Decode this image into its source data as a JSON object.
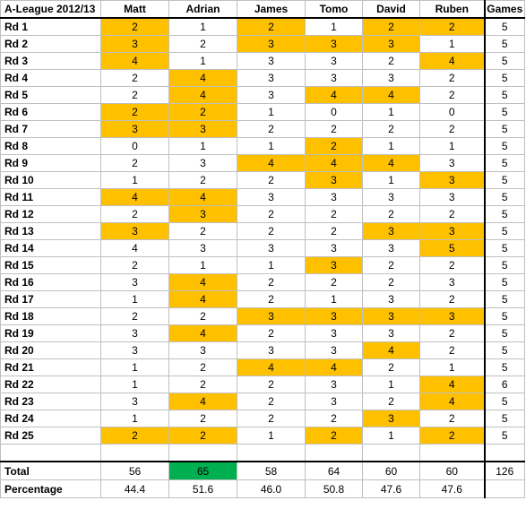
{
  "table": {
    "title": "A-League 2012/13",
    "players": [
      "Matt",
      "Adrian",
      "James",
      "Tomo",
      "David",
      "Ruben"
    ],
    "games_header": "Games",
    "highlight_color": "#ffc000",
    "best_total_color": "#00b050",
    "rounds": [
      {
        "label": "Rd 1",
        "scores": [
          "2",
          "1",
          "2",
          "1",
          "2",
          "2"
        ],
        "hl": [
          1,
          0,
          1,
          0,
          1,
          1
        ],
        "games": "5"
      },
      {
        "label": "Rd 2",
        "scores": [
          "3",
          "2",
          "3",
          "3",
          "3",
          "1"
        ],
        "hl": [
          1,
          0,
          1,
          1,
          1,
          0
        ],
        "games": "5"
      },
      {
        "label": "Rd 3",
        "scores": [
          "4",
          "1",
          "3",
          "3",
          "2",
          "4"
        ],
        "hl": [
          1,
          0,
          0,
          0,
          0,
          1
        ],
        "games": "5"
      },
      {
        "label": "Rd 4",
        "scores": [
          "2",
          "4",
          "3",
          "3",
          "3",
          "2"
        ],
        "hl": [
          0,
          1,
          0,
          0,
          0,
          0
        ],
        "games": "5"
      },
      {
        "label": "Rd 5",
        "scores": [
          "2",
          "4",
          "3",
          "4",
          "4",
          "2"
        ],
        "hl": [
          0,
          1,
          0,
          1,
          1,
          0
        ],
        "games": "5"
      },
      {
        "label": "Rd 6",
        "scores": [
          "2",
          "2",
          "1",
          "0",
          "1",
          "0"
        ],
        "hl": [
          1,
          1,
          0,
          0,
          0,
          0
        ],
        "games": "5"
      },
      {
        "label": "Rd 7",
        "scores": [
          "3",
          "3",
          "2",
          "2",
          "2",
          "2"
        ],
        "hl": [
          1,
          1,
          0,
          0,
          0,
          0
        ],
        "games": "5"
      },
      {
        "label": "Rd 8",
        "scores": [
          "0",
          "1",
          "1",
          "2",
          "1",
          "1"
        ],
        "hl": [
          0,
          0,
          0,
          1,
          0,
          0
        ],
        "games": "5"
      },
      {
        "label": "Rd 9",
        "scores": [
          "2",
          "3",
          "4",
          "4",
          "4",
          "3"
        ],
        "hl": [
          0,
          0,
          1,
          1,
          1,
          0
        ],
        "games": "5"
      },
      {
        "label": "Rd 10",
        "scores": [
          "1",
          "2",
          "2",
          "3",
          "1",
          "3"
        ],
        "hl": [
          0,
          0,
          0,
          1,
          0,
          1
        ],
        "games": "5"
      },
      {
        "label": "Rd 11",
        "scores": [
          "4",
          "4",
          "3",
          "3",
          "3",
          "3"
        ],
        "hl": [
          1,
          1,
          0,
          0,
          0,
          0
        ],
        "games": "5"
      },
      {
        "label": "Rd 12",
        "scores": [
          "2",
          "3",
          "2",
          "2",
          "2",
          "2"
        ],
        "hl": [
          0,
          1,
          0,
          0,
          0,
          0
        ],
        "games": "5"
      },
      {
        "label": "Rd 13",
        "scores": [
          "3",
          "2",
          "2",
          "2",
          "3",
          "3"
        ],
        "hl": [
          1,
          0,
          0,
          0,
          1,
          1
        ],
        "games": "5"
      },
      {
        "label": "Rd 14",
        "scores": [
          "4",
          "3",
          "3",
          "3",
          "3",
          "5"
        ],
        "hl": [
          0,
          0,
          0,
          0,
          0,
          1
        ],
        "games": "5"
      },
      {
        "label": "Rd 15",
        "scores": [
          "2",
          "1",
          "1",
          "3",
          "2",
          "2"
        ],
        "hl": [
          0,
          0,
          0,
          1,
          0,
          0
        ],
        "games": "5"
      },
      {
        "label": "Rd 16",
        "scores": [
          "3",
          "4",
          "2",
          "2",
          "2",
          "3"
        ],
        "hl": [
          0,
          1,
          0,
          0,
          0,
          0
        ],
        "games": "5"
      },
      {
        "label": "Rd 17",
        "scores": [
          "1",
          "4",
          "2",
          "1",
          "3",
          "2"
        ],
        "hl": [
          0,
          1,
          0,
          0,
          0,
          0
        ],
        "games": "5"
      },
      {
        "label": "Rd 18",
        "scores": [
          "2",
          "2",
          "3",
          "3",
          "3",
          "3"
        ],
        "hl": [
          0,
          0,
          1,
          1,
          1,
          1
        ],
        "games": "5"
      },
      {
        "label": "Rd 19",
        "scores": [
          "3",
          "4",
          "2",
          "3",
          "3",
          "2"
        ],
        "hl": [
          0,
          1,
          0,
          0,
          0,
          0
        ],
        "games": "5"
      },
      {
        "label": "Rd 20",
        "scores": [
          "3",
          "3",
          "3",
          "3",
          "4",
          "2"
        ],
        "hl": [
          0,
          0,
          0,
          0,
          1,
          0
        ],
        "games": "5"
      },
      {
        "label": "Rd 21",
        "scores": [
          "1",
          "2",
          "4",
          "4",
          "2",
          "1"
        ],
        "hl": [
          0,
          0,
          1,
          1,
          0,
          0
        ],
        "games": "5"
      },
      {
        "label": "Rd 22",
        "scores": [
          "1",
          "2",
          "2",
          "3",
          "1",
          "4"
        ],
        "hl": [
          0,
          0,
          0,
          0,
          0,
          1
        ],
        "games": "6"
      },
      {
        "label": "Rd 23",
        "scores": [
          "3",
          "4",
          "2",
          "3",
          "2",
          "4"
        ],
        "hl": [
          0,
          1,
          0,
          0,
          0,
          1
        ],
        "games": "5"
      },
      {
        "label": "Rd 24",
        "scores": [
          "1",
          "2",
          "2",
          "2",
          "3",
          "2"
        ],
        "hl": [
          0,
          0,
          0,
          0,
          1,
          0
        ],
        "games": "5"
      },
      {
        "label": "Rd 25",
        "scores": [
          "2",
          "2",
          "1",
          "2",
          "1",
          "2"
        ],
        "hl": [
          1,
          1,
          0,
          1,
          0,
          1
        ],
        "games": "5"
      }
    ],
    "total": {
      "label": "Total",
      "values": [
        "56",
        "65",
        "58",
        "64",
        "60",
        "60"
      ],
      "best": [
        0,
        1,
        0,
        0,
        0,
        0
      ],
      "games": "126"
    },
    "percentage": {
      "label": "Percentage",
      "values": [
        "44.4",
        "51.6",
        "46.0",
        "50.8",
        "47.6",
        "47.6"
      ]
    }
  }
}
